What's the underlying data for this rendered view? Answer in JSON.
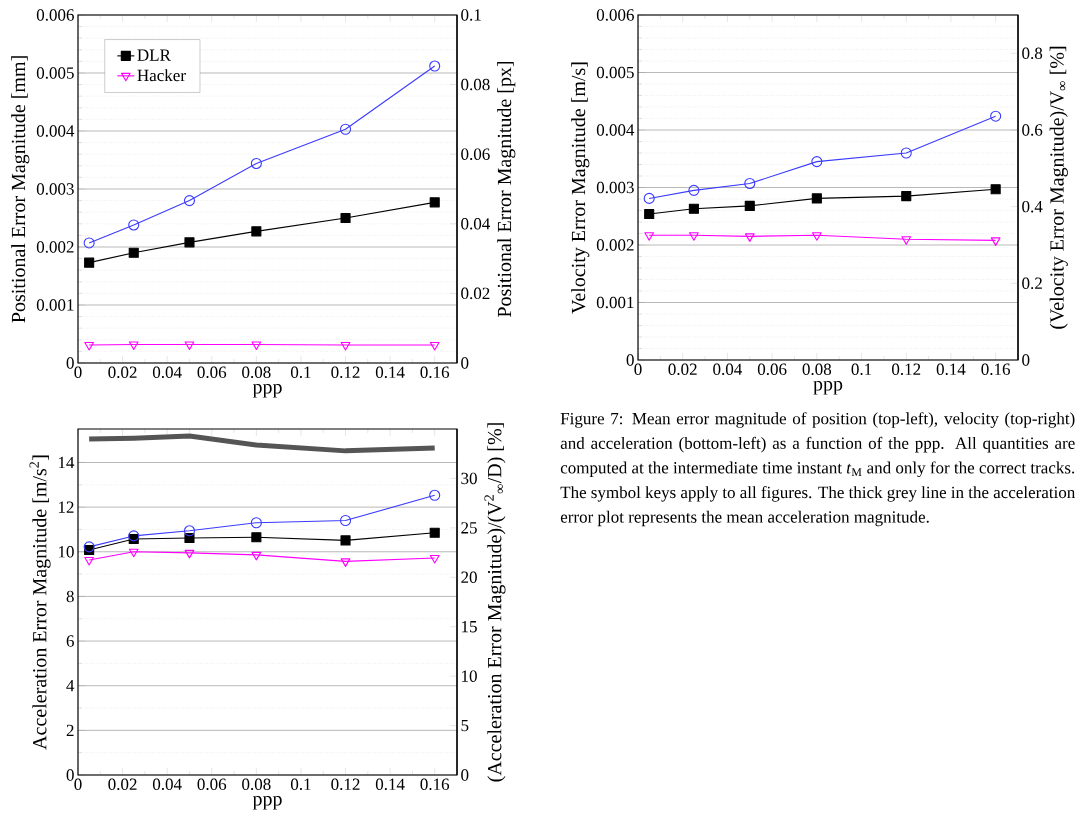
{
  "chart_data": [
    {
      "type": "line",
      "xlabel": "ppp",
      "ylabel": "Positional Error Magnitude [mm]",
      "y2label": "Positional Error Magnitude [px]",
      "x": [
        0.005,
        0.025,
        0.05,
        0.08,
        0.12,
        0.16
      ],
      "xlim": [
        0,
        0.17
      ],
      "xticks": [
        0,
        0.02,
        0.04,
        0.06,
        0.08,
        0.1,
        0.12,
        0.14,
        0.16
      ],
      "ylim": [
        0,
        0.006
      ],
      "yticks": [
        0,
        0.001,
        0.002,
        0.003,
        0.004,
        0.005,
        0.006
      ],
      "y2lim": [
        0,
        0.1
      ],
      "y2ticks": [
        0,
        0.02,
        0.04,
        0.06,
        0.08,
        0.1
      ],
      "grid": true,
      "legend": "top left",
      "series": [
        {
          "name": "DLR",
          "color": "#000000",
          "marker": "square",
          "values": [
            0.00173,
            0.0019,
            0.00208,
            0.00227,
            0.0025,
            0.00277
          ]
        },
        {
          "color": "#3b3bff",
          "marker": "circle",
          "values": [
            0.00207,
            0.00238,
            0.0028,
            0.00344,
            0.00403,
            0.00512
          ]
        },
        {
          "name": "Hacker",
          "color": "#ff00ff",
          "marker": "triangle",
          "values": [
            0.00031,
            0.00032,
            0.00032,
            0.00032,
            0.00031,
            0.00031
          ]
        }
      ]
    },
    {
      "type": "line",
      "xlabel": "ppp",
      "ylabel": "Velocity Error Magnitude [m/s]",
      "y2label": "(Velocity Error Magnitude)/V$_{∞}$ [%]",
      "x": [
        0.005,
        0.025,
        0.05,
        0.08,
        0.12,
        0.16
      ],
      "xlim": [
        0,
        0.17
      ],
      "xticks": [
        0,
        0.02,
        0.04,
        0.06,
        0.08,
        0.1,
        0.12,
        0.14,
        0.16
      ],
      "ylim": [
        0,
        0.006
      ],
      "yticks": [
        0,
        0.001,
        0.002,
        0.003,
        0.004,
        0.005,
        0.006
      ],
      "y2lim": [
        0,
        0.9
      ],
      "y2ticks": [
        0,
        0.2,
        0.4,
        0.6,
        0.8
      ],
      "grid": true,
      "series": [
        {
          "color": "#000000",
          "marker": "square",
          "values": [
            0.00254,
            0.00263,
            0.00268,
            0.00281,
            0.00285,
            0.00297
          ]
        },
        {
          "color": "#3b3bff",
          "marker": "circle",
          "values": [
            0.00281,
            0.00295,
            0.00307,
            0.00345,
            0.0036,
            0.00424
          ]
        },
        {
          "color": "#ff00ff",
          "marker": "triangle",
          "values": [
            0.00217,
            0.00217,
            0.00215,
            0.00217,
            0.0021,
            0.00208
          ]
        }
      ]
    },
    {
      "type": "line",
      "xlabel": "ppp",
      "ylabel": "Acceleration Error Magnitude [m/s$^{2}$]",
      "y2label": "(Acceleration Error Magnitude)/(V$^{2}$$_{∞}$/D) [%]",
      "x": [
        0.005,
        0.025,
        0.05,
        0.08,
        0.12,
        0.16
      ],
      "xlim": [
        0,
        0.17
      ],
      "xticks": [
        0,
        0.02,
        0.04,
        0.06,
        0.08,
        0.1,
        0.12,
        0.14,
        0.16
      ],
      "ylim": [
        0,
        15.5
      ],
      "yticks": [
        0,
        2,
        4,
        6,
        8,
        10,
        12,
        14
      ],
      "y2lim": [
        0,
        35
      ],
      "y2ticks": [
        0,
        5,
        10,
        15,
        20,
        25,
        30
      ],
      "grid": true,
      "annotations": [
        "Figure 7: Mean error magnitude of position (top-left), velocity (top-right) and acceleration (bottom-left) as a function of the ppp. All quantities are computed at the intermediate time instant *t*$_{M}$ and only for the correct tracks. The symbol keys apply to all figures. The thick grey line in the acceleration error plot represents the mean acceleration magnitude."
      ],
      "series": [
        {
          "color": "#000000",
          "marker": "square",
          "values": [
            10.08,
            10.57,
            10.62,
            10.65,
            10.51,
            10.85
          ]
        },
        {
          "color": "#3b3bff",
          "marker": "circle",
          "values": [
            10.22,
            10.71,
            10.94,
            11.3,
            11.4,
            12.53
          ]
        },
        {
          "color": "#ff00ff",
          "marker": "triangle",
          "values": [
            9.63,
            10.0,
            9.95,
            9.86,
            9.57,
            9.72
          ]
        },
        {
          "color": "#555555",
          "marker": "none",
          "values": [
            15.05,
            15.09,
            15.19,
            14.78,
            14.52,
            14.65
          ]
        }
      ]
    }
  ]
}
